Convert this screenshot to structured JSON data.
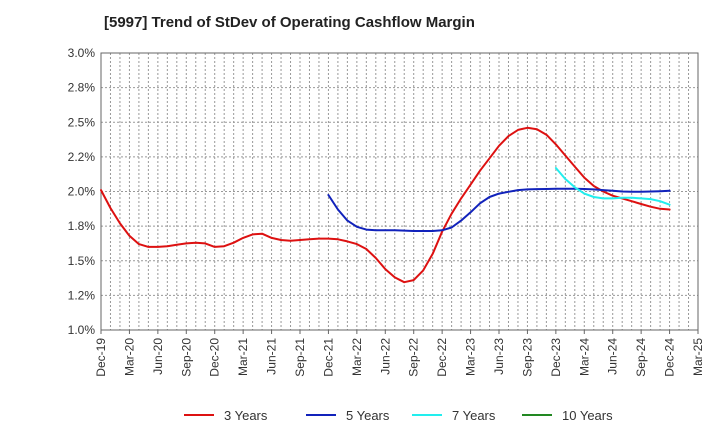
{
  "chart_data": {
    "type": "line",
    "title": "[5997]  Trend of StDev of Operating Cashflow Margin",
    "xlabel": "",
    "ylabel": "",
    "y_ticks": [
      "1.0%",
      "1.2%",
      "1.5%",
      "1.8%",
      "2.0%",
      "2.2%",
      "2.5%",
      "2.8%",
      "3.0%"
    ],
    "ylim": [
      1.0,
      3.0
    ],
    "x_ticks": [
      "Dec-19",
      "Mar-20",
      "Jun-20",
      "Sep-20",
      "Dec-20",
      "Mar-21",
      "Jun-21",
      "Sep-21",
      "Dec-21",
      "Mar-22",
      "Jun-22",
      "Sep-22",
      "Dec-22",
      "Mar-23",
      "Jun-23",
      "Sep-23",
      "Dec-23",
      "Mar-24",
      "Jun-24",
      "Sep-24",
      "Dec-24",
      "Mar-25"
    ],
    "grid": true,
    "legend_position": "bottom",
    "series": [
      {
        "name": "3 Years",
        "color": "#dd1111",
        "values": [
          [
            "Dec-19",
            2.01
          ],
          [
            "Jan-20",
            1.88
          ],
          [
            "Feb-20",
            1.77
          ],
          [
            "Mar-20",
            1.68
          ],
          [
            "Apr-20",
            1.62
          ],
          [
            "May-20",
            1.6
          ],
          [
            "Jun-20",
            1.6
          ],
          [
            "Jul-20",
            1.605
          ],
          [
            "Aug-20",
            1.615
          ],
          [
            "Sep-20",
            1.625
          ],
          [
            "Oct-20",
            1.63
          ],
          [
            "Nov-20",
            1.625
          ],
          [
            "Dec-20",
            1.6
          ],
          [
            "Jan-21",
            1.605
          ],
          [
            "Feb-21",
            1.63
          ],
          [
            "Mar-21",
            1.665
          ],
          [
            "Apr-21",
            1.69
          ],
          [
            "May-21",
            1.695
          ],
          [
            "Jun-21",
            1.665
          ],
          [
            "Jul-21",
            1.65
          ],
          [
            "Aug-21",
            1.645
          ],
          [
            "Sep-21",
            1.65
          ],
          [
            "Oct-21",
            1.655
          ],
          [
            "Nov-21",
            1.66
          ],
          [
            "Dec-21",
            1.66
          ],
          [
            "Jan-22",
            1.655
          ],
          [
            "Feb-22",
            1.64
          ],
          [
            "Mar-22",
            1.62
          ],
          [
            "Apr-22",
            1.585
          ],
          [
            "May-22",
            1.52
          ],
          [
            "Jun-22",
            1.44
          ],
          [
            "Jul-22",
            1.38
          ],
          [
            "Aug-22",
            1.345
          ],
          [
            "Sep-22",
            1.36
          ],
          [
            "Oct-22",
            1.43
          ],
          [
            "Nov-22",
            1.55
          ],
          [
            "Dec-22",
            1.71
          ],
          [
            "Jan-23",
            1.84
          ],
          [
            "Feb-23",
            1.95
          ],
          [
            "Mar-23",
            2.05
          ],
          [
            "Apr-23",
            2.15
          ],
          [
            "May-23",
            2.24
          ],
          [
            "Jun-23",
            2.33
          ],
          [
            "Jul-23",
            2.4
          ],
          [
            "Aug-23",
            2.445
          ],
          [
            "Sep-23",
            2.46
          ],
          [
            "Oct-23",
            2.45
          ],
          [
            "Nov-23",
            2.41
          ],
          [
            "Dec-23",
            2.34
          ],
          [
            "Jan-24",
            2.26
          ],
          [
            "Feb-24",
            2.18
          ],
          [
            "Mar-24",
            2.1
          ],
          [
            "Apr-24",
            2.04
          ],
          [
            "May-24",
            2.0
          ],
          [
            "Jun-24",
            1.97
          ],
          [
            "Jul-24",
            1.95
          ],
          [
            "Aug-24",
            1.93
          ],
          [
            "Sep-24",
            1.91
          ],
          [
            "Oct-24",
            1.89
          ],
          [
            "Nov-24",
            1.875
          ],
          [
            "Dec-24",
            1.87
          ]
        ]
      },
      {
        "name": "5 Years",
        "color": "#1122bb",
        "values": [
          [
            "Dec-21",
            1.975
          ],
          [
            "Jan-22",
            1.87
          ],
          [
            "Feb-22",
            1.79
          ],
          [
            "Mar-22",
            1.745
          ],
          [
            "Apr-22",
            1.725
          ],
          [
            "May-22",
            1.72
          ],
          [
            "Jun-22",
            1.72
          ],
          [
            "Jul-22",
            1.72
          ],
          [
            "Aug-22",
            1.718
          ],
          [
            "Sep-22",
            1.715
          ],
          [
            "Oct-22",
            1.715
          ],
          [
            "Nov-22",
            1.715
          ],
          [
            "Dec-22",
            1.72
          ],
          [
            "Jan-23",
            1.74
          ],
          [
            "Feb-23",
            1.79
          ],
          [
            "Mar-23",
            1.85
          ],
          [
            "Apr-23",
            1.915
          ],
          [
            "May-23",
            1.96
          ],
          [
            "Jun-23",
            1.985
          ],
          [
            "Jul-23",
            1.998
          ],
          [
            "Aug-23",
            2.01
          ],
          [
            "Sep-23",
            2.015
          ],
          [
            "Oct-23",
            2.017
          ],
          [
            "Nov-23",
            2.018
          ],
          [
            "Dec-23",
            2.02
          ],
          [
            "Jan-24",
            2.02
          ],
          [
            "Feb-24",
            2.02
          ],
          [
            "Mar-24",
            2.018
          ],
          [
            "Apr-24",
            2.015
          ],
          [
            "May-24",
            2.01
          ],
          [
            "Jun-24",
            2.005
          ],
          [
            "Jul-24",
            2.0
          ],
          [
            "Aug-24",
            1.998
          ],
          [
            "Sep-24",
            1.998
          ],
          [
            "Oct-24",
            2.0
          ],
          [
            "Nov-24",
            2.002
          ],
          [
            "Dec-24",
            2.005
          ]
        ]
      },
      {
        "name": "7 Years",
        "color": "#22eeee",
        "values": [
          [
            "Dec-23",
            2.17
          ],
          [
            "Jan-24",
            2.09
          ],
          [
            "Feb-24",
            2.03
          ],
          [
            "Mar-24",
            1.985
          ],
          [
            "Apr-24",
            1.96
          ],
          [
            "May-24",
            1.95
          ],
          [
            "Jun-24",
            1.95
          ],
          [
            "Jul-24",
            1.955
          ],
          [
            "Aug-24",
            1.955
          ],
          [
            "Sep-24",
            1.95
          ],
          [
            "Oct-24",
            1.945
          ],
          [
            "Nov-24",
            1.93
          ],
          [
            "Dec-24",
            1.905
          ]
        ]
      },
      {
        "name": "10 Years",
        "color": "#228822",
        "values": []
      }
    ]
  }
}
